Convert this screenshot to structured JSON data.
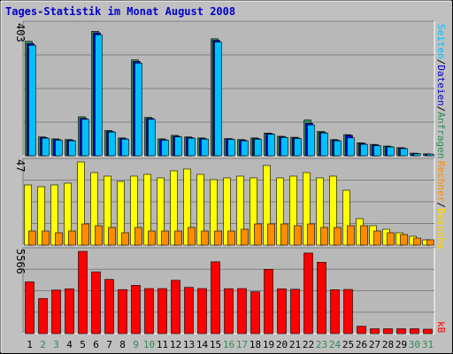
{
  "title": "Tages-Statistik im Monat August 2008",
  "colors": {
    "frame_bg": "#C0C0C0",
    "plot_bg": "#B8B8B8",
    "title": "#0000CC",
    "weekend_label": "#2E8B57",
    "weekday_label": "#000000",
    "anfragen": "#2E8B57",
    "dateien": "#0000CC",
    "seiten": "#00BFFF",
    "besuche": "#FFFF00",
    "rechner": "#FF8C00",
    "kb": "#FF0000",
    "kb_label": "#FF0000"
  },
  "side_labels": {
    "top": [
      {
        "text": "Anfragen",
        "color": "#2E8B57"
      },
      {
        "text": "/",
        "color": "#000000"
      },
      {
        "text": "Dateien",
        "color": "#0000CC"
      },
      {
        "text": "/",
        "color": "#000000"
      },
      {
        "text": "Seiten",
        "color": "#00BFFF"
      }
    ],
    "middle": [
      {
        "text": "Besuche",
        "color": "#FFD700"
      },
      {
        "text": "/",
        "color": "#000000"
      },
      {
        "text": "Rechner",
        "color": "#FF8C00"
      }
    ],
    "bottom": [
      {
        "text": "kB",
        "color": "#FF0000"
      }
    ]
  },
  "chart_data": [
    {
      "type": "bar",
      "panel": "top",
      "ymax_label": "403",
      "ylim": [
        0,
        403
      ],
      "categories": [
        "1",
        "2",
        "3",
        "4",
        "5",
        "6",
        "7",
        "8",
        "9",
        "10",
        "11",
        "12",
        "13",
        "14",
        "15",
        "16",
        "17",
        "18",
        "19",
        "20",
        "21",
        "22",
        "23",
        "24",
        "25",
        "26",
        "27",
        "28",
        "29",
        "30",
        "31"
      ],
      "weekend": [
        false,
        true,
        true,
        false,
        false,
        false,
        false,
        false,
        true,
        true,
        false,
        false,
        false,
        false,
        false,
        true,
        true,
        false,
        false,
        false,
        false,
        false,
        true,
        true,
        false,
        false,
        false,
        false,
        false,
        true,
        true
      ],
      "series": [
        {
          "name": "Anfragen",
          "color": "#2E8B57",
          "values": [
            352,
            58,
            52,
            50,
            120,
            383,
            78,
            55,
            295,
            118,
            52,
            63,
            58,
            55,
            360,
            53,
            50,
            55,
            70,
            60,
            57,
            110,
            75,
            50,
            65,
            40,
            35,
            30,
            25,
            8,
            6
          ]
        },
        {
          "name": "Dateien",
          "color": "#0000CC",
          "values": [
            345,
            56,
            50,
            48,
            115,
            378,
            75,
            53,
            290,
            115,
            50,
            60,
            56,
            53,
            355,
            52,
            48,
            53,
            68,
            58,
            55,
            100,
            72,
            48,
            63,
            38,
            33,
            28,
            24,
            7,
            5
          ]
        },
        {
          "name": "Seiten",
          "color": "#00BFFF",
          "values": [
            340,
            54,
            48,
            46,
            112,
            372,
            73,
            51,
            285,
            112,
            48,
            58,
            54,
            51,
            350,
            50,
            46,
            51,
            66,
            56,
            53,
            95,
            70,
            46,
            55,
            35,
            31,
            27,
            22,
            6,
            5
          ]
        }
      ]
    },
    {
      "type": "bar",
      "panel": "middle",
      "ymax_label": "47",
      "ylim": [
        0,
        47
      ],
      "categories": [
        "1",
        "2",
        "3",
        "4",
        "5",
        "6",
        "7",
        "8",
        "9",
        "10",
        "11",
        "12",
        "13",
        "14",
        "15",
        "16",
        "17",
        "18",
        "19",
        "20",
        "21",
        "22",
        "23",
        "24",
        "25",
        "26",
        "27",
        "28",
        "29",
        "30",
        "31"
      ],
      "series": [
        {
          "name": "Besuche",
          "color": "#FFFF00",
          "values": [
            34,
            33,
            34,
            35,
            47,
            41,
            39,
            36,
            39,
            40,
            38,
            42,
            43,
            40,
            37,
            38,
            39,
            38,
            45,
            38,
            39,
            41,
            38,
            39,
            31,
            15,
            11,
            9,
            7,
            5,
            3
          ]
        },
        {
          "name": "Rechner",
          "color": "#FF8C00",
          "values": [
            8,
            8,
            7,
            8,
            12,
            11,
            10,
            7,
            10,
            8,
            8,
            8,
            10,
            8,
            8,
            8,
            9,
            12,
            12,
            12,
            11,
            12,
            10,
            10,
            11,
            11,
            8,
            7,
            6,
            4,
            3
          ]
        }
      ]
    },
    {
      "type": "bar",
      "panel": "bottom",
      "ymax_label": "5566",
      "ylim": [
        0,
        5566
      ],
      "categories": [
        "1",
        "2",
        "3",
        "4",
        "5",
        "6",
        "7",
        "8",
        "9",
        "10",
        "11",
        "12",
        "13",
        "14",
        "15",
        "16",
        "17",
        "18",
        "19",
        "20",
        "21",
        "22",
        "23",
        "24",
        "25",
        "26",
        "27",
        "28",
        "29",
        "30",
        "31"
      ],
      "series": [
        {
          "name": "kB",
          "color": "#FF0000",
          "values": [
            3500,
            2380,
            2950,
            3030,
            5566,
            4180,
            3670,
            2980,
            3270,
            3050,
            3050,
            3610,
            3130,
            3050,
            4860,
            3040,
            3050,
            2830,
            4350,
            3030,
            3000,
            5450,
            4830,
            2970,
            2990,
            500,
            330,
            330,
            330,
            330,
            300
          ]
        }
      ]
    }
  ]
}
